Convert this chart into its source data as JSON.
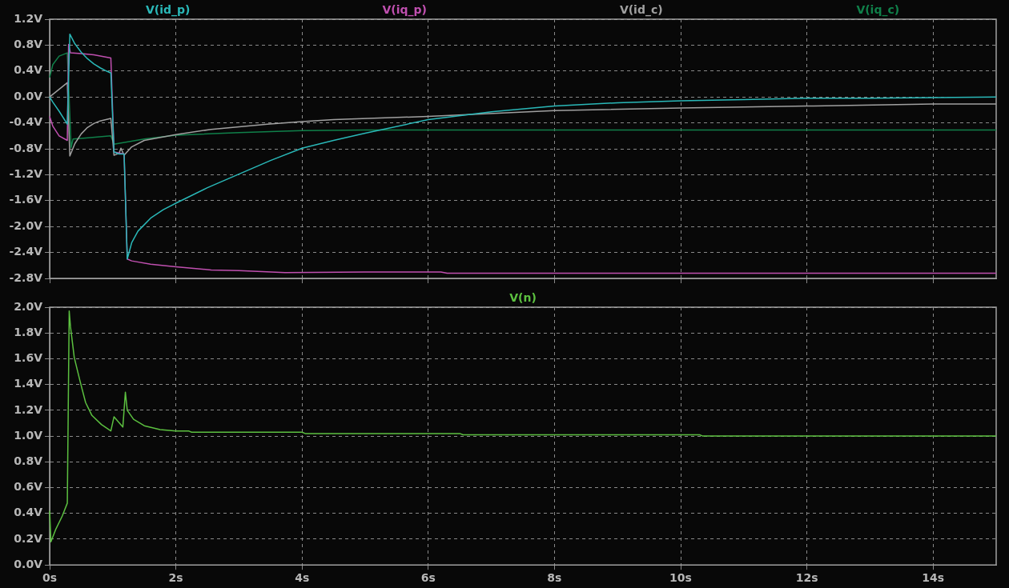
{
  "chart_data": [
    {
      "type": "line",
      "grid": true,
      "marker": "none",
      "tick_labels": "y",
      "xlim": [
        0,
        15
      ],
      "xticks": [
        {
          "value": 0,
          "label": null
        },
        {
          "value": 2,
          "label": null
        },
        {
          "value": 4,
          "label": null
        },
        {
          "value": 6,
          "label": null
        },
        {
          "value": 8,
          "label": null
        },
        {
          "value": 10,
          "label": null
        },
        {
          "value": 12,
          "label": null
        },
        {
          "value": 14,
          "label": null
        }
      ],
      "ylim": [
        -2.8,
        1.2
      ],
      "yticks": [
        {
          "value": -2.8,
          "label": "-2.8V"
        },
        {
          "value": -2.4,
          "label": "-2.4V"
        },
        {
          "value": -2.0,
          "label": "-2.0V"
        },
        {
          "value": -1.6,
          "label": "-1.6V"
        },
        {
          "value": -1.2,
          "label": "-1.2V"
        },
        {
          "value": -0.8,
          "label": "-0.8V"
        },
        {
          "value": -0.4,
          "label": "-0.4V"
        },
        {
          "value": 0,
          "label": "0.0V"
        },
        {
          "value": 0.4,
          "label": "0.4V"
        },
        {
          "value": 0.8,
          "label": "0.8V"
        },
        {
          "value": 1.2,
          "label": "1.2V"
        }
      ],
      "series": [
        {
          "name": "V(id_p)",
          "color": "#2ab8b8",
          "x": [
            0,
            0.05,
            0.15,
            0.28,
            0.32,
            0.4,
            0.5,
            0.6,
            0.7,
            0.8,
            0.9,
            0.97,
            1.02,
            1.1,
            1.18,
            1.23,
            1.3,
            1.4,
            1.6,
            1.8,
            2,
            2.5,
            3,
            3.5,
            4,
            4.5,
            5,
            6,
            7,
            8,
            9,
            10,
            11,
            12,
            13,
            14,
            15
          ],
          "values": [
            0,
            -0.08,
            -0.22,
            -0.42,
            0.97,
            0.82,
            0.69,
            0.59,
            0.51,
            0.45,
            0.4,
            0.37,
            -0.85,
            -0.88,
            -0.88,
            -2.5,
            -2.25,
            -2.07,
            -1.87,
            -1.74,
            -1.64,
            -1.4,
            -1.19,
            -0.98,
            -0.79,
            -0.67,
            -0.56,
            -0.35,
            -0.23,
            -0.14,
            -0.09,
            -0.06,
            -0.04,
            -0.02,
            -0.02,
            -0.01,
            0
          ]
        },
        {
          "name": "V(iq_p)",
          "color": "#c050b0",
          "x": [
            0,
            0.05,
            0.15,
            0.28,
            0.3,
            0.33,
            0.5,
            0.7,
            0.97,
            1.02,
            1.18,
            1.23,
            1.3,
            1.6,
            2,
            2.56,
            3,
            3.73,
            5,
            6.2,
            6.3,
            10,
            15
          ],
          "values": [
            -0.3,
            -0.45,
            -0.6,
            -0.67,
            0.81,
            0.68,
            0.67,
            0.65,
            0.6,
            -0.85,
            -0.88,
            -2.5,
            -2.53,
            -2.58,
            -2.62,
            -2.67,
            -2.68,
            -2.71,
            -2.7,
            -2.7,
            -2.72,
            -2.72,
            -2.72
          ]
        },
        {
          "name": "V(id_c)",
          "color": "#a0a0a0",
          "x": [
            0,
            0.28,
            0.32,
            0.4,
            0.5,
            0.6,
            0.7,
            0.8,
            0.97,
            1.02,
            1.1,
            1.13,
            1.18,
            1.3,
            1.5,
            2,
            2.56,
            3.45,
            4,
            4.5,
            6,
            8,
            10,
            12,
            14,
            15
          ],
          "values": [
            0,
            0.22,
            -0.91,
            -0.72,
            -0.57,
            -0.47,
            -0.41,
            -0.37,
            -0.33,
            -0.9,
            -0.87,
            -0.79,
            -0.9,
            -0.77,
            -0.67,
            -0.58,
            -0.5,
            -0.42,
            -0.38,
            -0.35,
            -0.3,
            -0.21,
            -0.17,
            -0.14,
            -0.11,
            -0.11
          ]
        },
        {
          "name": "V(iq_c)",
          "color": "#10804a",
          "x": [
            0,
            0.05,
            0.15,
            0.28,
            0.34,
            0.37,
            0.5,
            0.97,
            1.02,
            1.5,
            2,
            3,
            4,
            5,
            15
          ],
          "values": [
            0.3,
            0.5,
            0.63,
            0.68,
            -0.78,
            -0.65,
            -0.64,
            -0.6,
            -0.73,
            -0.65,
            -0.59,
            -0.55,
            -0.52,
            -0.51,
            -0.51
          ]
        }
      ]
    },
    {
      "type": "line",
      "grid": true,
      "marker": "none",
      "xlim": [
        0,
        15
      ],
      "xticks": [
        {
          "value": 0,
          "label": "0s"
        },
        {
          "value": 2,
          "label": "2s"
        },
        {
          "value": 4,
          "label": "4s"
        },
        {
          "value": 6,
          "label": "6s"
        },
        {
          "value": 8,
          "label": "8s"
        },
        {
          "value": 10,
          "label": "10s"
        },
        {
          "value": 12,
          "label": "12s"
        },
        {
          "value": 14,
          "label": "14s"
        }
      ],
      "ylim": [
        0,
        2
      ],
      "yticks": [
        {
          "value": 0,
          "label": "0.0V"
        },
        {
          "value": 0.2,
          "label": "0.2V"
        },
        {
          "value": 0.4,
          "label": "0.4V"
        },
        {
          "value": 0.6,
          "label": "0.6V"
        },
        {
          "value": 0.8,
          "label": "0.8V"
        },
        {
          "value": 1.0,
          "label": "1.0V"
        },
        {
          "value": 1.2,
          "label": "1.2V"
        },
        {
          "value": 1.4,
          "label": "1.4V"
        },
        {
          "value": 1.6,
          "label": "1.6V"
        },
        {
          "value": 1.8,
          "label": "1.8V"
        },
        {
          "value": 2.0,
          "label": "2.0V"
        }
      ],
      "series": [
        {
          "name": "V(n)",
          "color": "#5cc040",
          "x": [
            0,
            0.02,
            0.1,
            0.2,
            0.28,
            0.31,
            0.33,
            0.39,
            0.48,
            0.57,
            0.67,
            0.82,
            0.97,
            1.02,
            1.16,
            1.2,
            1.23,
            1.33,
            1.5,
            1.75,
            2,
            2.2,
            2.25,
            4,
            4.05,
            6.5,
            6.55,
            10.3,
            10.35,
            15
          ],
          "values": [
            0.42,
            0.18,
            0.28,
            0.38,
            0.48,
            1.97,
            1.85,
            1.61,
            1.43,
            1.26,
            1.16,
            1.09,
            1.04,
            1.15,
            1.07,
            1.34,
            1.2,
            1.13,
            1.08,
            1.05,
            1.04,
            1.04,
            1.03,
            1.03,
            1.02,
            1.02,
            1.01,
            1.01,
            1.0,
            1.0
          ]
        }
      ]
    }
  ]
}
